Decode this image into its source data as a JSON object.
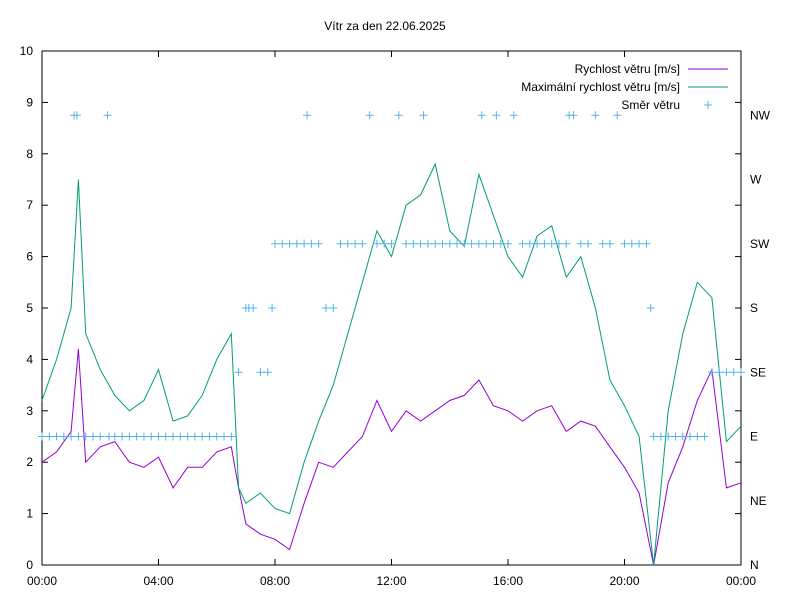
{
  "chart_data": {
    "type": "line",
    "title": "Vítr za den 22.06.2025",
    "x_ticks": [
      "00:00",
      "04:00",
      "08:00",
      "12:00",
      "16:00",
      "20:00",
      "00:00"
    ],
    "x_range_hours": [
      0,
      24
    ],
    "y_range": [
      0,
      10
    ],
    "y_ticks": [
      "0",
      "1",
      "2",
      "3",
      "4",
      "5",
      "6",
      "7",
      "8",
      "9",
      "10"
    ],
    "y2_range": [
      0,
      8
    ],
    "y2_ticks": [
      "N",
      "NE",
      "E",
      "SE",
      "S",
      "SW",
      "W",
      "NW"
    ],
    "grid": false,
    "legend_position": "top-right",
    "series": [
      {
        "name": "Rychlost větru [m/s]",
        "color": "#9400d3",
        "x_hours": [
          0,
          0.5,
          1,
          1.25,
          1.5,
          2,
          2.5,
          3,
          3.5,
          4,
          4.5,
          5,
          5.5,
          6,
          6.5,
          6.75,
          7,
          7.5,
          8,
          8.5,
          9,
          9.5,
          10,
          10.5,
          11,
          11.5,
          12,
          12.5,
          13,
          13.5,
          14,
          14.5,
          15,
          15.5,
          16,
          16.5,
          17,
          17.5,
          18,
          18.5,
          19,
          19.5,
          20,
          20.5,
          21,
          21.5,
          22,
          22.5,
          23,
          23.5,
          24
        ],
        "values": [
          2.0,
          2.2,
          2.6,
          4.2,
          2.0,
          2.3,
          2.4,
          2.0,
          1.9,
          2.1,
          1.5,
          1.9,
          1.9,
          2.2,
          2.3,
          1.5,
          0.8,
          0.6,
          0.5,
          0.3,
          1.2,
          2.0,
          1.9,
          2.2,
          2.5,
          3.2,
          2.6,
          3.0,
          2.8,
          3.0,
          3.2,
          3.3,
          3.6,
          3.1,
          3.0,
          2.8,
          3.0,
          3.1,
          2.6,
          2.8,
          2.7,
          2.3,
          1.9,
          1.4,
          0.0,
          1.6,
          2.3,
          3.2,
          3.8,
          1.5,
          1.6
        ]
      },
      {
        "name": "Maximální rychlost větru [m/s]",
        "color": "#009e73",
        "x_hours": [
          0,
          0.5,
          1,
          1.25,
          1.5,
          2,
          2.5,
          3,
          3.5,
          4,
          4.5,
          5,
          5.5,
          6,
          6.5,
          6.75,
          7,
          7.5,
          8,
          8.5,
          9,
          9.5,
          10,
          10.5,
          11,
          11.5,
          12,
          12.5,
          13,
          13.5,
          14,
          14.5,
          15,
          15.5,
          16,
          16.5,
          17,
          17.5,
          18,
          18.5,
          19,
          19.5,
          20,
          20.5,
          21,
          21.5,
          22,
          22.5,
          23,
          23.5,
          24
        ],
        "values": [
          3.2,
          4.0,
          5.0,
          7.5,
          4.5,
          3.8,
          3.3,
          3.0,
          3.2,
          3.8,
          2.8,
          2.9,
          3.3,
          4.0,
          4.5,
          1.5,
          1.2,
          1.4,
          1.1,
          1.0,
          2.0,
          2.8,
          3.5,
          4.5,
          5.5,
          6.5,
          6.0,
          7.0,
          7.2,
          7.8,
          6.5,
          6.2,
          7.6,
          6.8,
          6.0,
          5.6,
          6.4,
          6.6,
          5.6,
          6.0,
          5.0,
          3.6,
          3.1,
          2.5,
          0.0,
          3.0,
          4.5,
          5.5,
          5.2,
          2.4,
          2.7
        ]
      },
      {
        "name": "Směr větru",
        "color": "#56b4e9",
        "x_hours": [
          0,
          0.25,
          0.5,
          0.75,
          1,
          1.1,
          1.2,
          1.25,
          1.5,
          1.75,
          2,
          2.25,
          2.3,
          2.5,
          2.75,
          3,
          3.25,
          3.5,
          3.75,
          4,
          4.25,
          4.5,
          4.75,
          5,
          5.25,
          5.5,
          5.75,
          6,
          6.25,
          6.5,
          6.75,
          7,
          7.1,
          7.25,
          7.5,
          7.75,
          7.9,
          8,
          8.25,
          8.5,
          8.75,
          9,
          9.1,
          9.25,
          9.5,
          9.75,
          10,
          10.25,
          10.5,
          10.75,
          11,
          11.25,
          11.5,
          11.75,
          12,
          12.25,
          12.5,
          12.75,
          13,
          13.1,
          13.25,
          13.5,
          13.75,
          14,
          14.25,
          14.5,
          14.75,
          15,
          15.1,
          15.25,
          15.5,
          15.6,
          15.75,
          16,
          16.2,
          16.5,
          16.75,
          17,
          17.25,
          17.5,
          17.75,
          18,
          18.1,
          18.25,
          18.5,
          18.75,
          19,
          19.25,
          19.5,
          19.75,
          20,
          20.25,
          20.5,
          20.75,
          20.9,
          21,
          21.25,
          21.5,
          21.75,
          22,
          22.25,
          22.5,
          22.75,
          23,
          23.25,
          23.5,
          23.75,
          24
        ],
        "values": [
          2,
          2,
          2,
          2,
          2,
          7,
          7,
          2,
          2,
          2,
          2,
          7,
          2,
          2,
          2,
          2,
          2,
          2,
          2,
          2,
          2,
          2,
          2,
          2,
          2,
          2,
          2,
          2,
          2,
          2,
          3,
          4,
          4,
          4,
          3,
          3,
          4,
          5,
          5,
          5,
          5,
          5,
          7,
          5,
          5,
          4,
          4,
          5,
          5,
          5,
          5,
          7,
          5,
          5,
          5,
          7,
          5,
          5,
          5,
          7,
          5,
          5,
          5,
          5,
          5,
          5,
          5,
          5,
          7,
          5,
          5,
          7,
          5,
          5,
          7,
          5,
          5,
          5,
          5,
          5,
          5,
          5,
          7,
          7,
          5,
          5,
          7,
          5,
          5,
          7,
          5,
          5,
          5,
          5,
          4,
          2,
          2,
          2,
          2,
          2,
          2,
          2,
          2,
          3,
          3,
          3,
          3,
          3
        ],
        "marker": "+"
      }
    ]
  }
}
